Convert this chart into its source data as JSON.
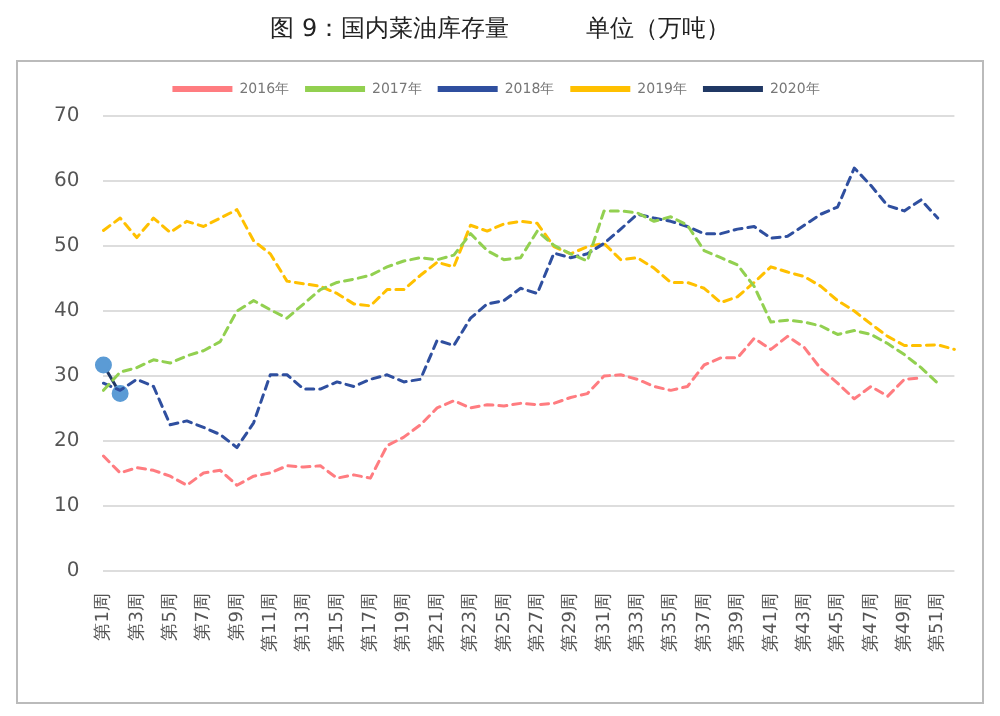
{
  "chart_data": {
    "type": "line",
    "title": "图 9：国内菜油库存量          单位（万吨）",
    "categories": [
      "第1周",
      null,
      "第3周",
      null,
      "第5周",
      null,
      "第7周",
      null,
      "第9周",
      null,
      "第11周",
      null,
      "第13周",
      null,
      "第15周",
      null,
      "第17周",
      null,
      "第19周",
      null,
      "第21周",
      null,
      "第23周",
      null,
      "第25周",
      null,
      "第27周",
      null,
      "第29周",
      null,
      "第31周",
      null,
      "第33周",
      null,
      "第35周",
      null,
      "第37周",
      null,
      "第39周",
      null,
      "第41周",
      null,
      "第43周",
      null,
      "第45周",
      null,
      "第47周",
      null,
      "第49周",
      null,
      "第51周",
      null
    ],
    "series": [
      {
        "name": "2016年",
        "color": "#ff7c80",
        "line_style": "dashed",
        "marker": "none",
        "values": [
          17.7,
          15.1,
          15.9,
          15.5,
          14.6,
          13.2,
          15.1,
          15.5,
          13.2,
          14.6,
          15.1,
          16.2,
          16,
          16.2,
          14.3,
          14.8,
          14.3,
          19.3,
          20.6,
          22.5,
          25.1,
          26.2,
          25.1,
          25.6,
          25.4,
          25.8,
          25.6,
          25.8,
          26.7,
          27.3,
          30,
          30.2,
          29.5,
          28.4,
          27.8,
          28.4,
          31.7,
          32.8,
          32.8,
          35.8,
          34.1,
          36.1,
          34.4,
          31.1,
          28.9,
          26.5,
          28.4,
          26.9,
          29.5,
          29.7,
          null,
          null
        ]
      },
      {
        "name": "2017年",
        "color": "#92d050",
        "line_style": "dashed",
        "marker": "none",
        "values": [
          27.8,
          30.6,
          31.3,
          32.5,
          32,
          33.1,
          33.9,
          35.3,
          40,
          41.6,
          40.2,
          38.9,
          41.1,
          43.3,
          44.4,
          44.9,
          45.5,
          46.8,
          47.7,
          48.2,
          47.9,
          48.6,
          51.9,
          49.3,
          47.9,
          48.2,
          52.3,
          50.1,
          48.8,
          47.7,
          55.4,
          55.4,
          55.1,
          53.8,
          54.5,
          53.2,
          49.3,
          48.2,
          47.1,
          43.8,
          38.3,
          38.6,
          38.3,
          37.7,
          36.4,
          37,
          36.4,
          35,
          33.3,
          31.3,
          28.9,
          null
        ]
      },
      {
        "name": "2018年",
        "color": "#2f4f9f",
        "line_style": "dashed",
        "marker": "none",
        "values": [
          28.9,
          27.8,
          29.5,
          28.4,
          22.5,
          23.1,
          22.1,
          21,
          19,
          22.8,
          30.2,
          30.2,
          28,
          28,
          29.1,
          28.4,
          29.5,
          30.2,
          29.1,
          29.5,
          35.5,
          34.7,
          38.9,
          41.1,
          41.6,
          43.5,
          42.7,
          48.9,
          48.2,
          48.8,
          50.4,
          52.6,
          54.9,
          54.3,
          53.8,
          53,
          51.9,
          51.9,
          52.6,
          53,
          51.2,
          51.5,
          53.2,
          54.9,
          56,
          62,
          59.3,
          56.2,
          55.4,
          57.1,
          54.3,
          null
        ]
      },
      {
        "name": "2019年",
        "color": "#ffc000",
        "line_style": "dashed",
        "marker": "none",
        "values": [
          52.4,
          54.3,
          51.3,
          54.3,
          52.1,
          53.8,
          53,
          54.3,
          55.6,
          50.8,
          48.8,
          44.6,
          44.2,
          43.8,
          42.7,
          41.1,
          40.8,
          43.3,
          43.3,
          45.5,
          47.5,
          46.8,
          53.2,
          52.3,
          53.4,
          53.8,
          53.5,
          49.9,
          48.8,
          49.9,
          50.4,
          47.9,
          48.2,
          46.6,
          44.4,
          44.4,
          43.5,
          41.3,
          42.2,
          44.4,
          46.8,
          46,
          45.3,
          43.8,
          41.6,
          40,
          38,
          36.1,
          34.7,
          34.7,
          34.8,
          34.1
        ]
      },
      {
        "name": "2020年",
        "color": "#203864",
        "line_style": "solid",
        "marker": "circle",
        "values": [
          31.7,
          27.3,
          null,
          null,
          null,
          null,
          null,
          null,
          null,
          null,
          null,
          null,
          null,
          null,
          null,
          null,
          null,
          null,
          null,
          null,
          null,
          null,
          null,
          null,
          null,
          null,
          null,
          null,
          null,
          null,
          null,
          null,
          null,
          null,
          null,
          null,
          null,
          null,
          null,
          null,
          null,
          null,
          null,
          null,
          null,
          null,
          null,
          null,
          null,
          null,
          null,
          null
        ]
      }
    ],
    "ylim": [
      0,
      70
    ],
    "yticks": [
      0,
      10,
      20,
      30,
      40,
      50,
      60,
      70
    ],
    "grid": "y",
    "legend": "top"
  }
}
